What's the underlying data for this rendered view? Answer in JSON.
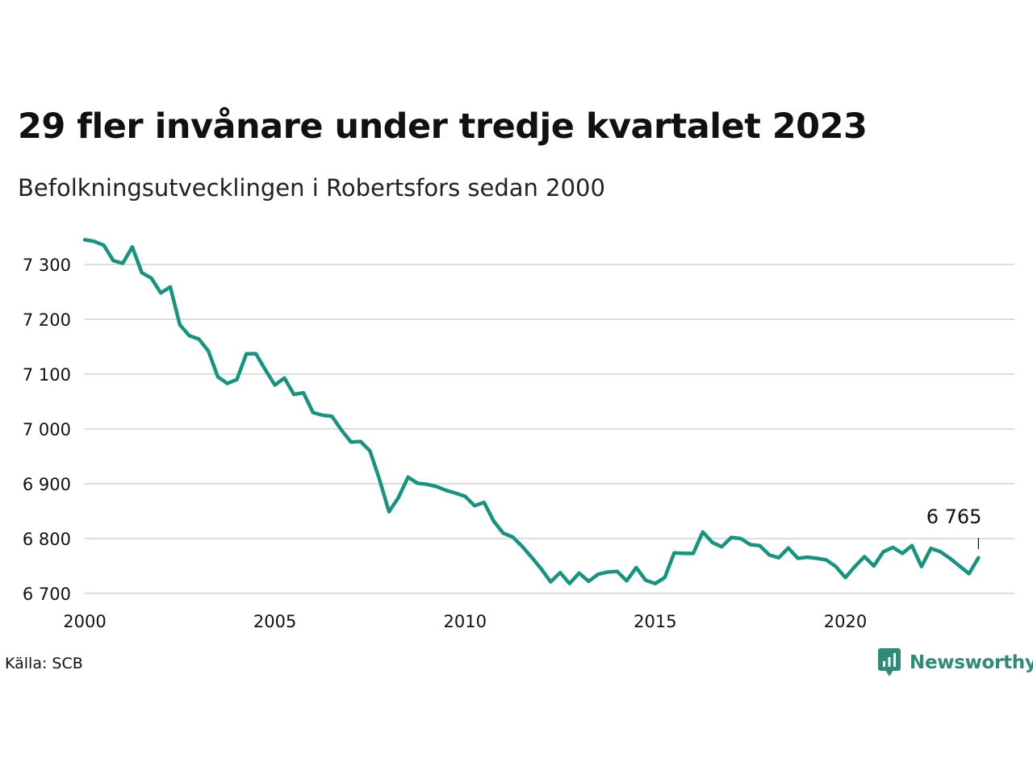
{
  "title": "29 fler invånare under tredje kvartalet 2023",
  "subtitle": "Befolkningsutvecklingen i Robertsfors sedan 2000",
  "source": "Källa: SCB",
  "brand": {
    "name": "Newsworthy",
    "icon": "newsworthy-logo-icon",
    "color": "#2f8a78"
  },
  "colors": {
    "line": "#17947f",
    "grid": "#dddddd",
    "text": "#111111"
  },
  "chart_data": {
    "type": "line",
    "title": "29 fler invånare under tredje kvartalet 2023",
    "subtitle": "Befolkningsutvecklingen i Robertsfors sedan 2000",
    "xlabel": "",
    "ylabel": "",
    "x_ticks": [
      2000,
      2005,
      2010,
      2015,
      2020
    ],
    "y_ticks": [
      6700,
      6800,
      6900,
      7000,
      7100,
      7200,
      7300
    ],
    "y_tick_labels": [
      "6 700",
      "6 800",
      "6 900",
      "7 000",
      "7 100",
      "7 200",
      "7 300"
    ],
    "xlim": [
      2000,
      2024
    ],
    "ylim": [
      6700,
      7360
    ],
    "grid": "horizontal",
    "last_value_label": "6 765",
    "series": [
      {
        "x": [
          "2000-Q1",
          "2000-Q2",
          "2000-Q3",
          "2000-Q4",
          "2001-Q1",
          "2001-Q2",
          "2001-Q3",
          "2001-Q4",
          "2002-Q1",
          "2002-Q2",
          "2002-Q3",
          "2002-Q4",
          "2003-Q1",
          "2003-Q2",
          "2003-Q3",
          "2003-Q4",
          "2004-Q1",
          "2004-Q2",
          "2004-Q3",
          "2004-Q4",
          "2005-Q1",
          "2005-Q2",
          "2005-Q3",
          "2005-Q4",
          "2006-Q1",
          "2006-Q2",
          "2006-Q3",
          "2006-Q4",
          "2007-Q1",
          "2007-Q2",
          "2007-Q3",
          "2007-Q4",
          "2008-Q1",
          "2008-Q2",
          "2008-Q3",
          "2008-Q4",
          "2009-Q1",
          "2009-Q2",
          "2009-Q3",
          "2009-Q4",
          "2010-Q1",
          "2010-Q2",
          "2010-Q3",
          "2010-Q4",
          "2011-Q1",
          "2011-Q2",
          "2011-Q3",
          "2011-Q4",
          "2012-Q1",
          "2012-Q2",
          "2012-Q3",
          "2012-Q4",
          "2013-Q1",
          "2013-Q2",
          "2013-Q3",
          "2013-Q4",
          "2014-Q1",
          "2014-Q2",
          "2014-Q3",
          "2014-Q4",
          "2015-Q1",
          "2015-Q2",
          "2015-Q3",
          "2015-Q4",
          "2016-Q1",
          "2016-Q2",
          "2016-Q3",
          "2016-Q4",
          "2017-Q1",
          "2017-Q2",
          "2017-Q3",
          "2017-Q4",
          "2018-Q1",
          "2018-Q2",
          "2018-Q3",
          "2018-Q4",
          "2019-Q1",
          "2019-Q2",
          "2019-Q3",
          "2019-Q4",
          "2020-Q1",
          "2020-Q2",
          "2020-Q3",
          "2020-Q4",
          "2021-Q1",
          "2021-Q2",
          "2021-Q3",
          "2021-Q4",
          "2022-Q1",
          "2022-Q2",
          "2022-Q3",
          "2022-Q4",
          "2023-Q1",
          "2023-Q2",
          "2023-Q3"
        ],
        "values": [
          7345,
          7342,
          7335,
          7307,
          7302,
          7332,
          7285,
          7275,
          7248,
          7259,
          7190,
          7170,
          7164,
          7142,
          7095,
          7083,
          7090,
          7137,
          7137,
          7108,
          7080,
          7093,
          7063,
          7066,
          7030,
          7025,
          7023,
          6998,
          6976,
          6977,
          6960,
          6908,
          6849,
          6875,
          6912,
          6901,
          6899,
          6895,
          6888,
          6883,
          6877,
          6860,
          6866,
          6832,
          6810,
          6803,
          6786,
          6766,
          6745,
          6721,
          6738,
          6718,
          6737,
          6722,
          6735,
          6739,
          6740,
          6723,
          6747,
          6724,
          6718,
          6729,
          6774,
          6773,
          6773,
          6812,
          6793,
          6785,
          6802,
          6800,
          6789,
          6787,
          6770,
          6765,
          6783,
          6764,
          6766,
          6764,
          6761,
          6749,
          6729,
          6749,
          6767,
          6750,
          6776,
          6784,
          6773,
          6787,
          6749,
          6782,
          6776,
          6764,
          6750,
          6736,
          6765
        ]
      }
    ]
  }
}
